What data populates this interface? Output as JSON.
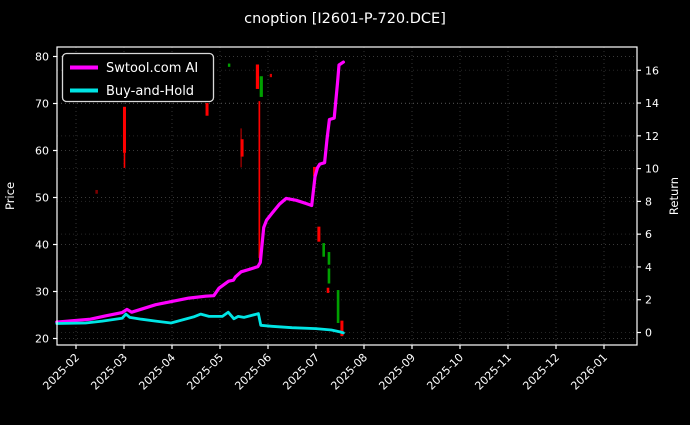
{
  "figure": {
    "background": "#000000",
    "text_color": "#ffffff"
  },
  "chart_data": {
    "type": "line",
    "title": "cnoption [I2601-P-720.DCE]",
    "x_tick_labels": [
      "2025-02",
      "2025-03",
      "2025-04",
      "2025-05",
      "2025-06",
      "2025-07",
      "2025-08",
      "2025-09",
      "2025-10",
      "2025-11",
      "2025-12",
      "2026-01"
    ],
    "x_unit": "months since 2025-02 tick",
    "xlim": [
      -0.4,
      11.69
    ],
    "y_left": {
      "label": "Price",
      "ticks": [
        20,
        30,
        40,
        50,
        60,
        70,
        80
      ],
      "lim": [
        18.6,
        82.0
      ]
    },
    "y_right": {
      "label": "Return",
      "ticks": [
        0,
        2,
        4,
        6,
        8,
        10,
        12,
        14,
        16
      ],
      "lim": [
        -0.76,
        17.42
      ]
    },
    "grid": true,
    "legend": {
      "position": "upper-left",
      "entries": [
        {
          "label": "Swtool.com AI",
          "color": "#ff00ff"
        },
        {
          "label": "Buy-and-Hold",
          "color": "#00e5e5"
        }
      ]
    },
    "series": [
      {
        "name": "Swtool.com AI",
        "color": "#ff00ff",
        "width": 3.2,
        "axis": "price",
        "points": [
          [
            -0.4,
            23.5
          ],
          [
            0.3,
            24.1
          ],
          [
            0.61,
            24.8
          ],
          [
            0.96,
            25.5
          ],
          [
            1.06,
            26.2
          ],
          [
            1.16,
            25.6
          ],
          [
            1.66,
            27.2
          ],
          [
            2.35,
            28.6
          ],
          [
            2.7,
            29.0
          ],
          [
            2.87,
            29.1
          ],
          [
            2.98,
            30.7
          ],
          [
            3.18,
            32.2
          ],
          [
            3.28,
            32.4
          ],
          [
            3.32,
            33.1
          ],
          [
            3.44,
            34.2
          ],
          [
            3.61,
            34.7
          ],
          [
            3.79,
            35.3
          ],
          [
            3.84,
            36.2
          ],
          [
            3.91,
            43.6
          ],
          [
            3.97,
            45.2
          ],
          [
            4.08,
            46.6
          ],
          [
            4.24,
            48.6
          ],
          [
            4.38,
            49.8
          ],
          [
            4.59,
            49.4
          ],
          [
            4.8,
            48.7
          ],
          [
            4.91,
            48.3
          ],
          [
            4.98,
            54.4
          ],
          [
            5.03,
            56.3
          ],
          [
            5.08,
            57.1
          ],
          [
            5.18,
            57.4
          ],
          [
            5.23,
            62.4
          ],
          [
            5.28,
            66.6
          ],
          [
            5.38,
            66.9
          ],
          [
            5.45,
            74.6
          ],
          [
            5.48,
            78.2
          ],
          [
            5.57,
            78.8
          ]
        ]
      },
      {
        "name": "Buy-and-Hold",
        "color": "#00e5e5",
        "width": 2.8,
        "axis": "price",
        "points": [
          [
            -0.4,
            23.2
          ],
          [
            0.2,
            23.3
          ],
          [
            0.55,
            23.7
          ],
          [
            0.96,
            24.3
          ],
          [
            1.04,
            25.2
          ],
          [
            1.12,
            24.5
          ],
          [
            1.36,
            24.1
          ],
          [
            1.66,
            23.7
          ],
          [
            1.98,
            23.3
          ],
          [
            2.45,
            24.6
          ],
          [
            2.6,
            25.2
          ],
          [
            2.77,
            24.7
          ],
          [
            3.05,
            24.7
          ],
          [
            3.17,
            25.6
          ],
          [
            3.29,
            24.2
          ],
          [
            3.38,
            24.7
          ],
          [
            3.5,
            24.5
          ],
          [
            3.65,
            24.9
          ],
          [
            3.8,
            25.3
          ],
          [
            3.85,
            22.8
          ],
          [
            4.08,
            22.6
          ],
          [
            4.5,
            22.3
          ],
          [
            5.0,
            22.1
          ],
          [
            5.32,
            21.8
          ],
          [
            5.5,
            21.4
          ],
          [
            5.57,
            21.2
          ]
        ]
      }
    ],
    "candles": [
      {
        "x": 0.43,
        "top": 51.6,
        "bottom": 50.8,
        "color": "#8b0000",
        "w": 2.5,
        "alpha": 0.9
      },
      {
        "x": 1.01,
        "top": 69.3,
        "bottom": 59.5,
        "color": "#ff0000",
        "w": 3.0,
        "alpha": 1
      },
      {
        "x": 1.01,
        "top": 59.5,
        "bottom": 56.3,
        "color": "#ff0000",
        "w": 1.6,
        "alpha": 1
      },
      {
        "x": 2.73,
        "top": 70.1,
        "bottom": 67.4,
        "color": "#ff0000",
        "w": 3.0,
        "alpha": 1
      },
      {
        "x": 3.19,
        "top": 78.5,
        "bottom": 77.8,
        "color": "#00a000",
        "w": 2.4,
        "alpha": 1
      },
      {
        "x": 3.44,
        "top": 64.7,
        "bottom": 56.4,
        "color": "#ff0000",
        "w": 1.4,
        "alpha": 0.6
      },
      {
        "x": 3.46,
        "top": 62.4,
        "bottom": 58.7,
        "color": "#ff0000",
        "w": 3.0,
        "alpha": 1
      },
      {
        "x": 3.78,
        "top": 78.3,
        "bottom": 73.1,
        "color": "#ff0000",
        "w": 3.2,
        "alpha": 1
      },
      {
        "x": 3.82,
        "top": 70.5,
        "bottom": 37.1,
        "color": "#ff0000",
        "w": 1.7,
        "alpha": 1
      },
      {
        "x": 3.86,
        "top": 75.8,
        "bottom": 71.4,
        "color": "#00a000",
        "w": 3.2,
        "alpha": 1
      },
      {
        "x": 4.06,
        "top": 76.3,
        "bottom": 75.6,
        "color": "#ff0000",
        "w": 2.2,
        "alpha": 0.85
      },
      {
        "x": 4.97,
        "top": 56.5,
        "bottom": 54.5,
        "color": "#ff0000",
        "w": 3.0,
        "alpha": 1
      },
      {
        "x": 5.06,
        "top": 43.8,
        "bottom": 40.6,
        "color": "#ff0000",
        "w": 3.0,
        "alpha": 1
      },
      {
        "x": 5.16,
        "top": 40.3,
        "bottom": 37.4,
        "color": "#00a000",
        "w": 2.6,
        "alpha": 1
      },
      {
        "x": 5.27,
        "top": 38.4,
        "bottom": 35.7,
        "color": "#00a000",
        "w": 2.6,
        "alpha": 1
      },
      {
        "x": 5.27,
        "top": 34.9,
        "bottom": 31.7,
        "color": "#00a000",
        "w": 2.6,
        "alpha": 1
      },
      {
        "x": 5.25,
        "top": 30.8,
        "bottom": 29.7,
        "color": "#ff0000",
        "w": 2.6,
        "alpha": 1
      },
      {
        "x": 5.46,
        "top": 30.3,
        "bottom": 23.3,
        "color": "#00a000",
        "w": 2.6,
        "alpha": 1
      },
      {
        "x": 5.54,
        "top": 23.8,
        "bottom": 20.5,
        "color": "#ff0000",
        "w": 3.0,
        "alpha": 1
      }
    ]
  }
}
